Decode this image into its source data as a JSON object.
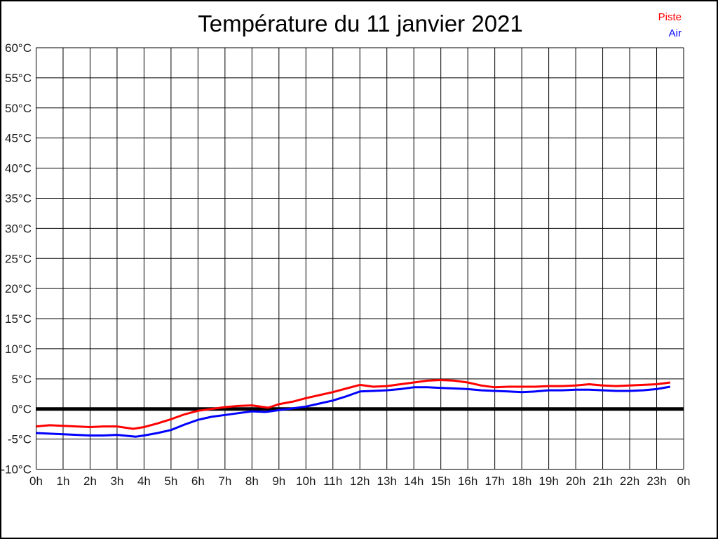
{
  "window": {
    "background_color": "#ffffff",
    "frame_border_color": "#000000"
  },
  "chart_data": {
    "type": "line",
    "title": "Température du 11 janvier 2021",
    "xlabel": "",
    "ylabel": "",
    "xlim": [
      0,
      24
    ],
    "ylim": [
      -10,
      60
    ],
    "y_step": 5,
    "grid": true,
    "grid_color": "#000000",
    "zero_line_value": 0,
    "zero_line_color": "#000000",
    "legend_position": "top-right",
    "x_tick_labels": [
      "0h",
      "1h",
      "2h",
      "3h",
      "4h",
      "5h",
      "6h",
      "7h",
      "8h",
      "9h",
      "10h",
      "11h",
      "12h",
      "13h",
      "14h",
      "15h",
      "16h",
      "17h",
      "18h",
      "19h",
      "20h",
      "21h",
      "22h",
      "23h",
      "0h"
    ],
    "y_tick_labels": [
      "60°C",
      "55°C",
      "50°C",
      "45°C",
      "40°C",
      "35°C",
      "30°C",
      "25°C",
      "20°C",
      "15°C",
      "10°C",
      "5°C",
      "0°C",
      "-5°C",
      "-10°C"
    ],
    "series": [
      {
        "name": "Piste",
        "color": "#ff0000",
        "points": [
          [
            0,
            -2.9
          ],
          [
            0.5,
            -2.7
          ],
          [
            1,
            -2.8
          ],
          [
            1.5,
            -2.9
          ],
          [
            2,
            -3.0
          ],
          [
            2.5,
            -2.9
          ],
          [
            3,
            -2.9
          ],
          [
            3.6,
            -3.3
          ],
          [
            4,
            -3.0
          ],
          [
            4.5,
            -2.4
          ],
          [
            5,
            -1.7
          ],
          [
            5.5,
            -0.9
          ],
          [
            6,
            -0.3
          ],
          [
            6.5,
            0.0
          ],
          [
            7,
            0.3
          ],
          [
            7.5,
            0.5
          ],
          [
            8,
            0.6
          ],
          [
            8.6,
            0.2
          ],
          [
            9,
            0.8
          ],
          [
            9.5,
            1.2
          ],
          [
            10,
            1.8
          ],
          [
            10.5,
            2.3
          ],
          [
            11,
            2.8
          ],
          [
            11.5,
            3.4
          ],
          [
            12,
            4.0
          ],
          [
            12.5,
            3.7
          ],
          [
            13,
            3.8
          ],
          [
            13.5,
            4.1
          ],
          [
            14,
            4.4
          ],
          [
            14.5,
            4.7
          ],
          [
            15,
            4.8
          ],
          [
            15.5,
            4.7
          ],
          [
            16,
            4.4
          ],
          [
            16.5,
            3.9
          ],
          [
            17,
            3.6
          ],
          [
            17.5,
            3.7
          ],
          [
            18,
            3.7
          ],
          [
            18.5,
            3.7
          ],
          [
            19,
            3.8
          ],
          [
            19.5,
            3.8
          ],
          [
            20,
            3.9
          ],
          [
            20.5,
            4.1
          ],
          [
            21,
            3.9
          ],
          [
            21.5,
            3.8
          ],
          [
            22,
            3.9
          ],
          [
            22.5,
            4.0
          ],
          [
            23,
            4.1
          ],
          [
            23.5,
            4.4
          ]
        ]
      },
      {
        "name": "Air",
        "color": "#0000ff",
        "points": [
          [
            0,
            -4.0
          ],
          [
            0.5,
            -4.1
          ],
          [
            1,
            -4.2
          ],
          [
            1.5,
            -4.3
          ],
          [
            2,
            -4.4
          ],
          [
            2.5,
            -4.4
          ],
          [
            3,
            -4.3
          ],
          [
            3.7,
            -4.6
          ],
          [
            4,
            -4.4
          ],
          [
            4.5,
            -4.0
          ],
          [
            5,
            -3.5
          ],
          [
            5.5,
            -2.6
          ],
          [
            6,
            -1.8
          ],
          [
            6.5,
            -1.3
          ],
          [
            7,
            -1.0
          ],
          [
            7.5,
            -0.7
          ],
          [
            8,
            -0.4
          ],
          [
            8.5,
            -0.5
          ],
          [
            9,
            -0.2
          ],
          [
            9.5,
            0.1
          ],
          [
            10,
            0.4
          ],
          [
            10.5,
            0.9
          ],
          [
            11,
            1.4
          ],
          [
            11.5,
            2.1
          ],
          [
            12,
            2.9
          ],
          [
            12.5,
            3.0
          ],
          [
            13,
            3.1
          ],
          [
            13.5,
            3.3
          ],
          [
            14,
            3.6
          ],
          [
            14.5,
            3.6
          ],
          [
            15,
            3.5
          ],
          [
            15.5,
            3.4
          ],
          [
            16,
            3.3
          ],
          [
            16.5,
            3.1
          ],
          [
            17,
            3.0
          ],
          [
            17.5,
            2.9
          ],
          [
            18,
            2.8
          ],
          [
            18.5,
            2.9
          ],
          [
            19,
            3.1
          ],
          [
            19.5,
            3.1
          ],
          [
            20,
            3.2
          ],
          [
            20.5,
            3.2
          ],
          [
            21,
            3.1
          ],
          [
            21.5,
            3.0
          ],
          [
            22,
            3.0
          ],
          [
            22.5,
            3.1
          ],
          [
            23,
            3.3
          ],
          [
            23.5,
            3.7
          ]
        ]
      }
    ]
  }
}
